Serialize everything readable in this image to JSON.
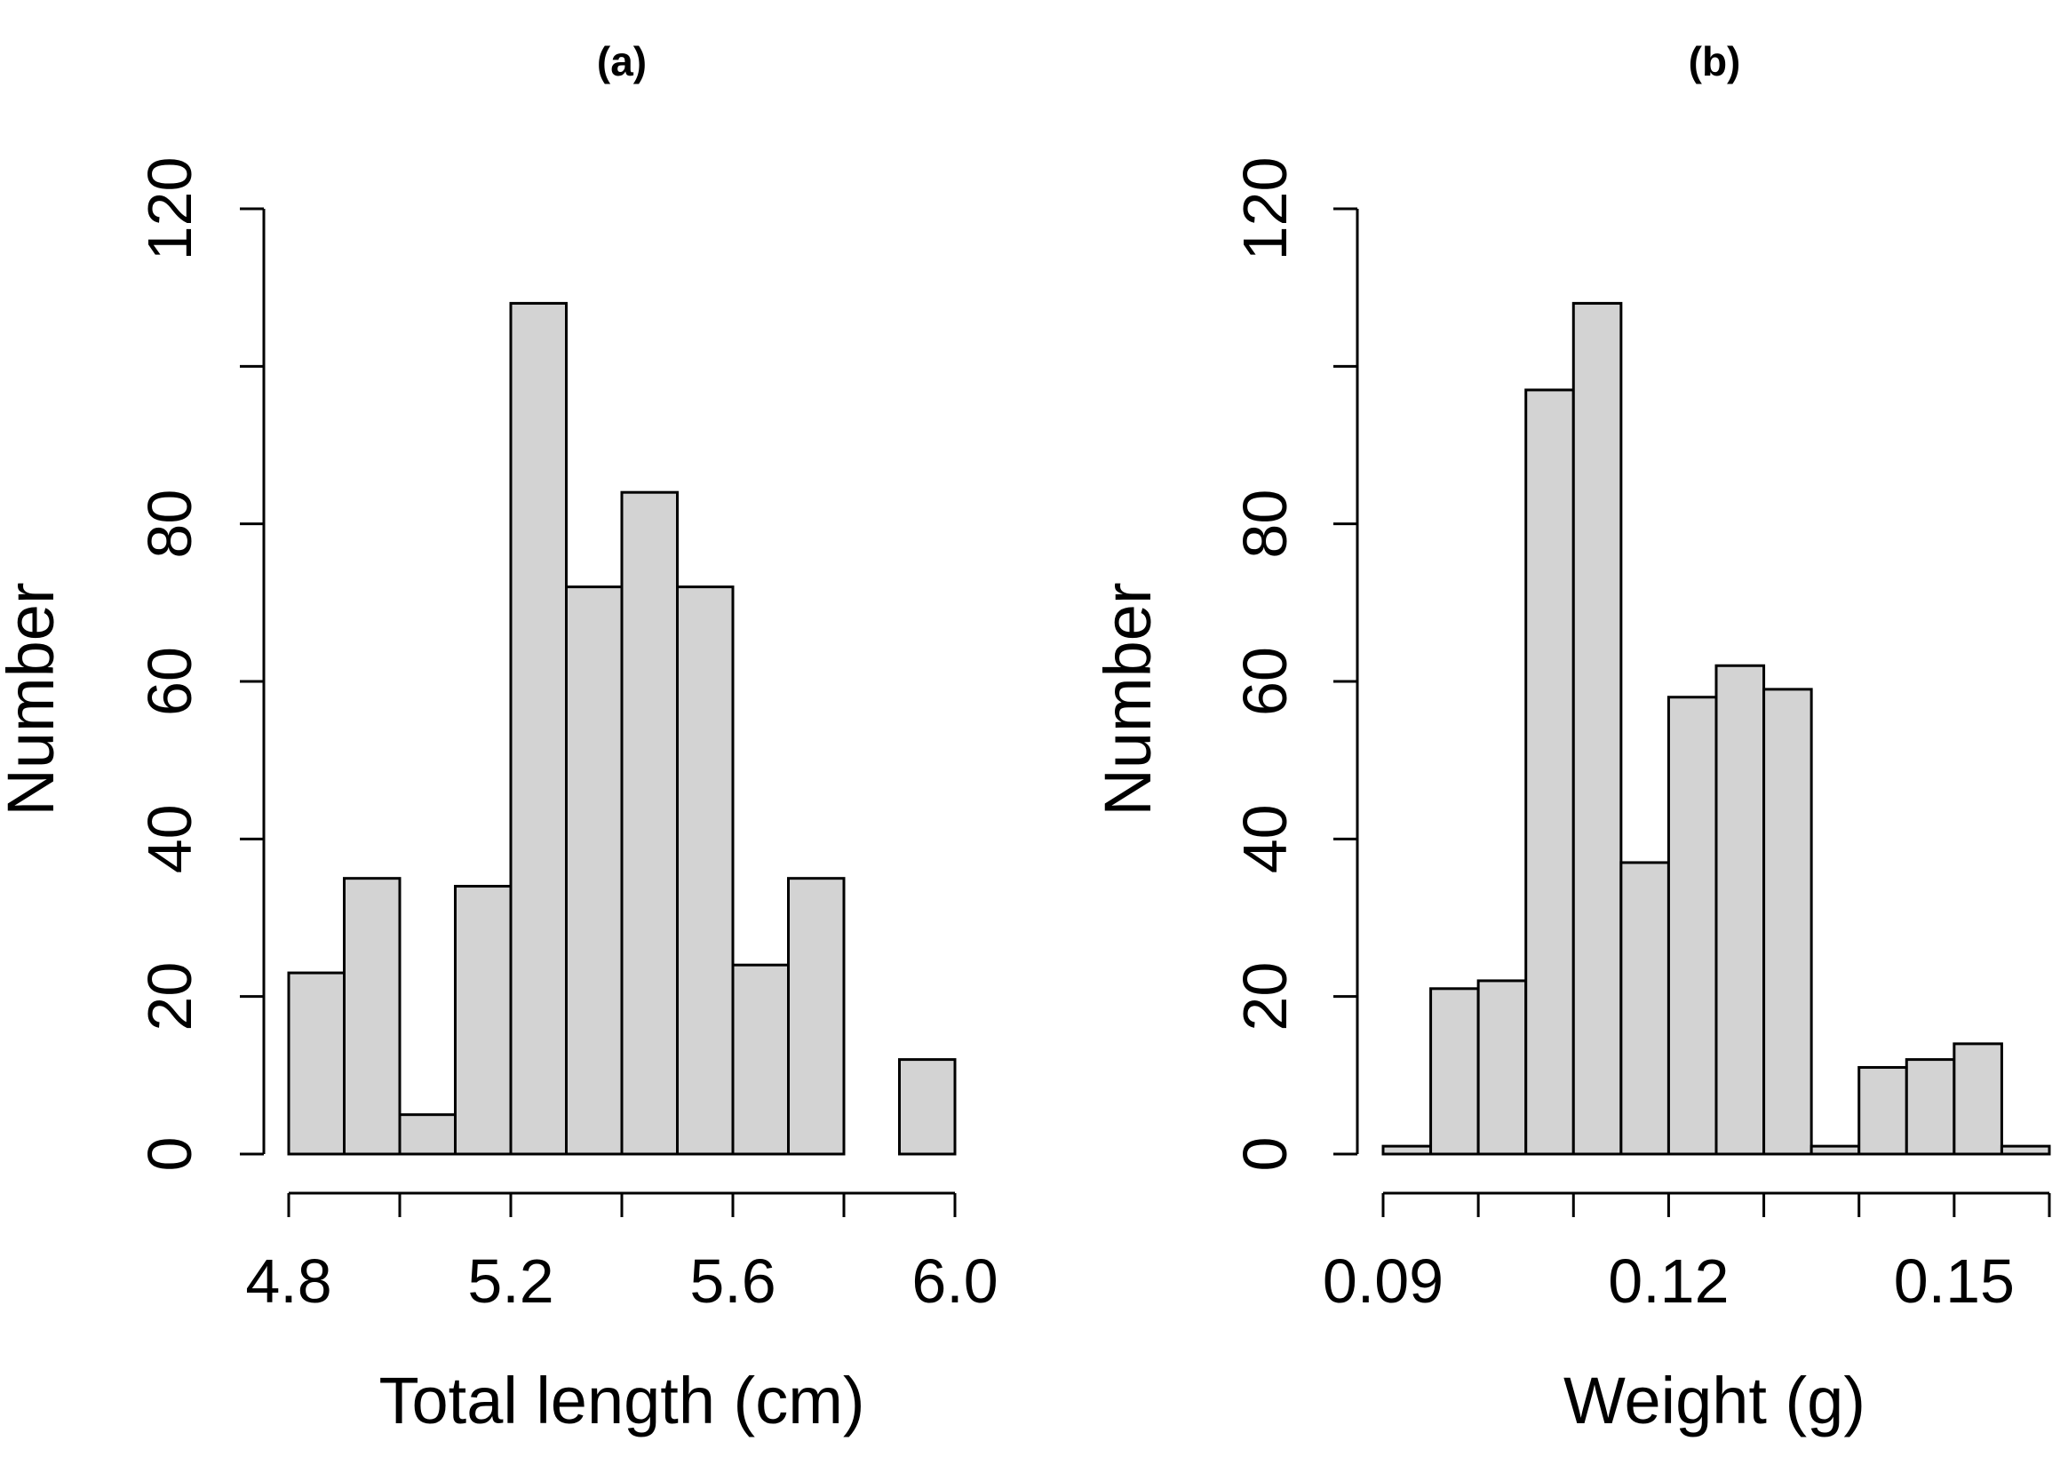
{
  "colors": {
    "bar_fill": "#d3d3d3",
    "bar_stroke": "#000000",
    "background": "#ffffff"
  },
  "chart_data": [
    {
      "type": "bar",
      "title": "(a)",
      "xlabel": "Total length (cm)",
      "ylabel": "Number",
      "bin_edges": [
        4.8,
        4.9,
        5.0,
        5.1,
        5.2,
        5.3,
        5.4,
        5.5,
        5.6,
        5.7,
        5.8,
        5.9,
        6.0
      ],
      "values": [
        23,
        35,
        5,
        34,
        108,
        72,
        84,
        72,
        24,
        35,
        0,
        12
      ],
      "xlim": [
        4.8,
        6.0
      ],
      "ylim": [
        0,
        120
      ],
      "x_ticks": [
        4.8,
        5.0,
        5.2,
        5.4,
        5.6,
        5.8,
        6.0
      ],
      "x_tick_labels": [
        "4.8",
        "",
        "5.2",
        "",
        "5.6",
        "",
        "6.0"
      ],
      "y_ticks": [
        0,
        20,
        40,
        60,
        80,
        100,
        120
      ],
      "y_tick_labels": [
        "0",
        "20",
        "40",
        "60",
        "80",
        "",
        "120"
      ],
      "grid": false
    },
    {
      "type": "bar",
      "title": "(b)",
      "xlabel": "Weight (g)",
      "ylabel": "Number",
      "bin_edges": [
        0.09,
        0.095,
        0.1,
        0.105,
        0.11,
        0.115,
        0.12,
        0.125,
        0.13,
        0.135,
        0.14,
        0.145,
        0.15,
        0.155,
        0.16
      ],
      "values": [
        1,
        21,
        22,
        97,
        108,
        37,
        58,
        62,
        59,
        1,
        11,
        12,
        14,
        1
      ],
      "xlim": [
        0.09,
        0.16
      ],
      "ylim": [
        0,
        120
      ],
      "x_ticks": [
        0.09,
        0.1,
        0.11,
        0.12,
        0.13,
        0.14,
        0.15,
        0.16
      ],
      "x_tick_labels": [
        "0.09",
        "",
        "",
        "0.12",
        "",
        "",
        "0.15",
        ""
      ],
      "y_ticks": [
        0,
        20,
        40,
        60,
        80,
        100,
        120
      ],
      "y_tick_labels": [
        "0",
        "20",
        "40",
        "60",
        "80",
        "",
        "120"
      ],
      "grid": false
    }
  ]
}
